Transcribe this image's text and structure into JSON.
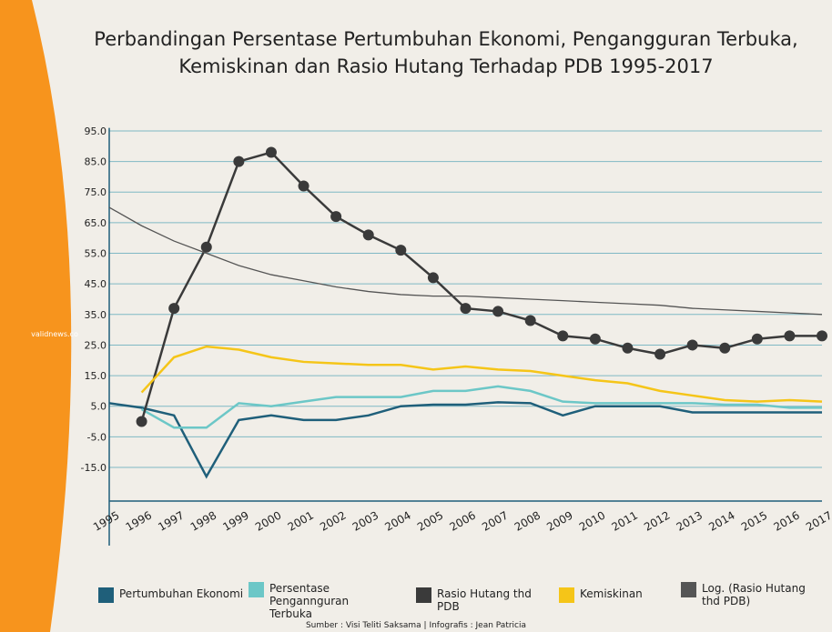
{
  "chart_data": {
    "type": "line",
    "title": [
      "Perbandingan Persentase Pertumbuhan Ekonomi, Pengangguran Terbuka,",
      "Kemiskinan dan Rasio Hutang Terhadap PDB 1995-2017"
    ],
    "watermark": "validnews.co",
    "source": "Sumber : Visi Teliti Saksama | Infografis : Jean Patricia",
    "categories": [
      "1995",
      "1996",
      "1997",
      "1998",
      "1999",
      "2000",
      "2001",
      "2002",
      "2003",
      "2004",
      "2005",
      "2006",
      "2007",
      "2008",
      "2009",
      "2010",
      "2011",
      "2012",
      "2013",
      "2014",
      "2015",
      "2016",
      "2017"
    ],
    "ylim": [
      -26,
      96
    ],
    "yticks": [
      {
        "value": 95,
        "label": "95.0"
      },
      {
        "value": 85,
        "label": "85.0"
      },
      {
        "value": 75,
        "label": "75.0"
      },
      {
        "value": 65,
        "label": "65.0"
      },
      {
        "value": 55,
        "label": "55.0"
      },
      {
        "value": 45,
        "label": "45.0"
      },
      {
        "value": 35,
        "label": "35.0"
      },
      {
        "value": 25,
        "label": "25.0"
      },
      {
        "value": 15,
        "label": "15.0"
      },
      {
        "value": 5,
        "label": "5.0"
      },
      {
        "value": -5,
        "label": "-5.0"
      },
      {
        "value": -15,
        "label": "-15.0"
      }
    ],
    "grid": true,
    "series": [
      {
        "name": "Pertumbuhan Ekonomi",
        "color": "#1f5f7a",
        "values": [
          6,
          4.5,
          2,
          -18,
          0.5,
          2,
          0.5,
          0.5,
          2,
          5,
          5.5,
          5.5,
          6.3,
          6,
          2,
          5,
          5,
          5,
          3,
          3,
          3,
          3,
          3
        ]
      },
      {
        "name": "Persentase Pengannguran Terbuka",
        "color": "#6cc7c7",
        "values": [
          null,
          4,
          -2,
          -2,
          6,
          5,
          6.5,
          8,
          8,
          8,
          10,
          10,
          11.5,
          10,
          6.5,
          6,
          6,
          6,
          6,
          5.5,
          5.5,
          4.5,
          4.5
        ]
      },
      {
        "name": "Rasio Hutang thd PDB",
        "color": "#3a3a3a",
        "markers": true,
        "values": [
          null,
          0,
          37,
          57,
          85,
          88,
          77,
          67,
          61,
          56,
          47,
          37,
          36,
          33,
          28,
          27,
          24,
          22,
          25,
          24,
          27,
          28,
          28
        ]
      },
      {
        "name": "Kemiskinan",
        "color": "#f5c518",
        "values": [
          null,
          9.5,
          21,
          24.5,
          23.5,
          21,
          19.5,
          19,
          18.5,
          18.5,
          17,
          18,
          17,
          16.5,
          15,
          13.5,
          12.5,
          10,
          8.5,
          7,
          6.5,
          7,
          6.5
        ]
      },
      {
        "name": "Log. (Rasio Hutang thd PDB)",
        "color": "#555555",
        "values": [
          70,
          64,
          59,
          55,
          51,
          48,
          46,
          44,
          42.5,
          41.5,
          41,
          41,
          40.5,
          40,
          39.5,
          39,
          38.5,
          38,
          37,
          36.5,
          36,
          35.5,
          35
        ]
      }
    ]
  }
}
